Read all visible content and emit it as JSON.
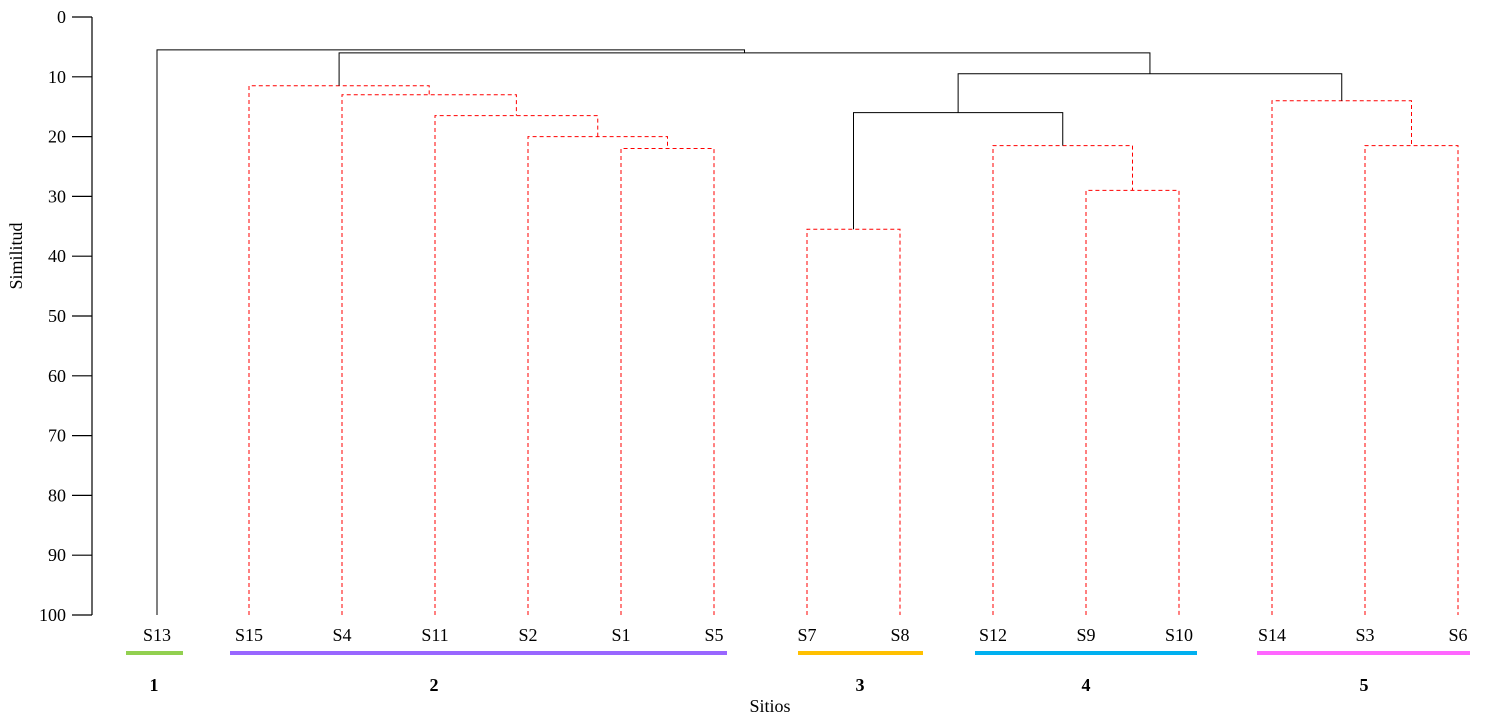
{
  "chart_data": {
    "type": "dendrogram",
    "xlabel": "Sitios",
    "ylabel": "Similitud",
    "ylim": [
      0,
      100
    ],
    "yticks": [
      0,
      10,
      20,
      30,
      40,
      50,
      60,
      70,
      80,
      90,
      100
    ],
    "y_inverted": true,
    "leaves": [
      "S13",
      "S15",
      "S4",
      "S11",
      "S2",
      "S1",
      "S5",
      "S7",
      "S8",
      "S12",
      "S9",
      "S10",
      "S14",
      "S3",
      "S6"
    ],
    "merges": [
      {
        "a": "S1",
        "b": "S5",
        "height": 22,
        "style": "dashed"
      },
      {
        "a": "S2",
        "b": "S1+S5",
        "height": 20,
        "style": "dashed"
      },
      {
        "a": "S11",
        "b": "S2+S1+S5",
        "height": 16.5,
        "style": "dashed"
      },
      {
        "a": "S4",
        "b": "S11+S2+S1+S5",
        "height": 13,
        "style": "dashed"
      },
      {
        "a": "S15",
        "b": "S4+S11+S2+S1+S5",
        "height": 11.5,
        "style": "dashed"
      },
      {
        "a": "S7",
        "b": "S8",
        "height": 35.5,
        "style": "dashed"
      },
      {
        "a": "S9",
        "b": "S10",
        "height": 29,
        "style": "dashed"
      },
      {
        "a": "S12",
        "b": "S9+S10",
        "height": 21.5,
        "style": "dashed"
      },
      {
        "a": "S3",
        "b": "S6",
        "height": 21.5,
        "style": "dashed"
      },
      {
        "a": "S14",
        "b": "S3+S6",
        "height": 14,
        "style": "dashed"
      },
      {
        "a": "C3",
        "b": "C4",
        "height": 16,
        "style": "solid"
      },
      {
        "a": "C3+C4",
        "b": "C5",
        "height": 9.5,
        "style": "solid"
      },
      {
        "a": "C2",
        "b": "C3+C4+C5",
        "height": 6,
        "style": "solid"
      },
      {
        "a": "S13",
        "b": "C2+C3+C4+C5",
        "height": 5.5,
        "style": "solid"
      }
    ],
    "groups": [
      {
        "label": "1",
        "color": "#92d050",
        "leaves": [
          "S13"
        ]
      },
      {
        "label": "2",
        "color": "#9966ff",
        "leaves": [
          "S15",
          "S4",
          "S11",
          "S2",
          "S1",
          "S5"
        ]
      },
      {
        "label": "3",
        "color": "#ffc000",
        "leaves": [
          "S7",
          "S8"
        ]
      },
      {
        "label": "4",
        "color": "#00b0f0",
        "leaves": [
          "S12",
          "S9",
          "S10"
        ]
      },
      {
        "label": "5",
        "color": "#ff66ff",
        "leaves": [
          "S14",
          "S3",
          "S6"
        ]
      }
    ],
    "line_colors": {
      "solid": "#000000",
      "dashed": "#ff0000"
    }
  }
}
